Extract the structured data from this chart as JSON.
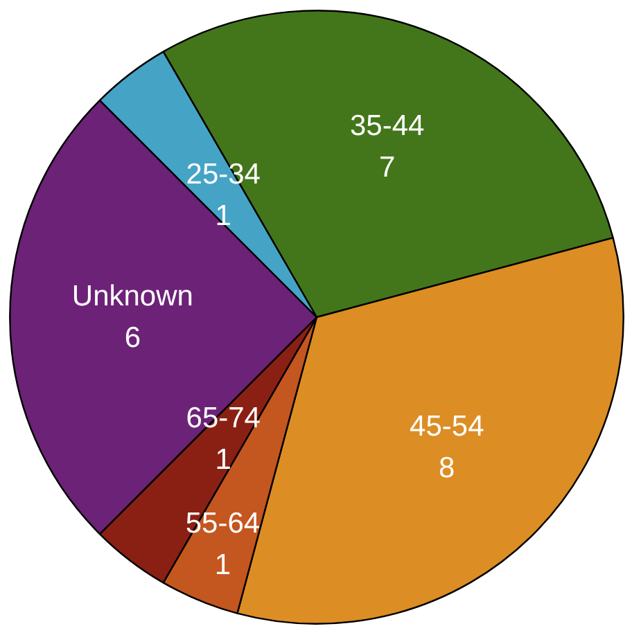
{
  "chart_data": {
    "type": "pie",
    "categories": [
      "35-44",
      "45-54",
      "55-64",
      "65-74",
      "Unknown",
      "25-34"
    ],
    "values": [
      7,
      8,
      1,
      1,
      6,
      1
    ],
    "colors": [
      "#43761a",
      "#dc8d24",
      "#c4561f",
      "#8a2014",
      "#6c2277",
      "#45a4c6"
    ],
    "data_labels": true
  }
}
